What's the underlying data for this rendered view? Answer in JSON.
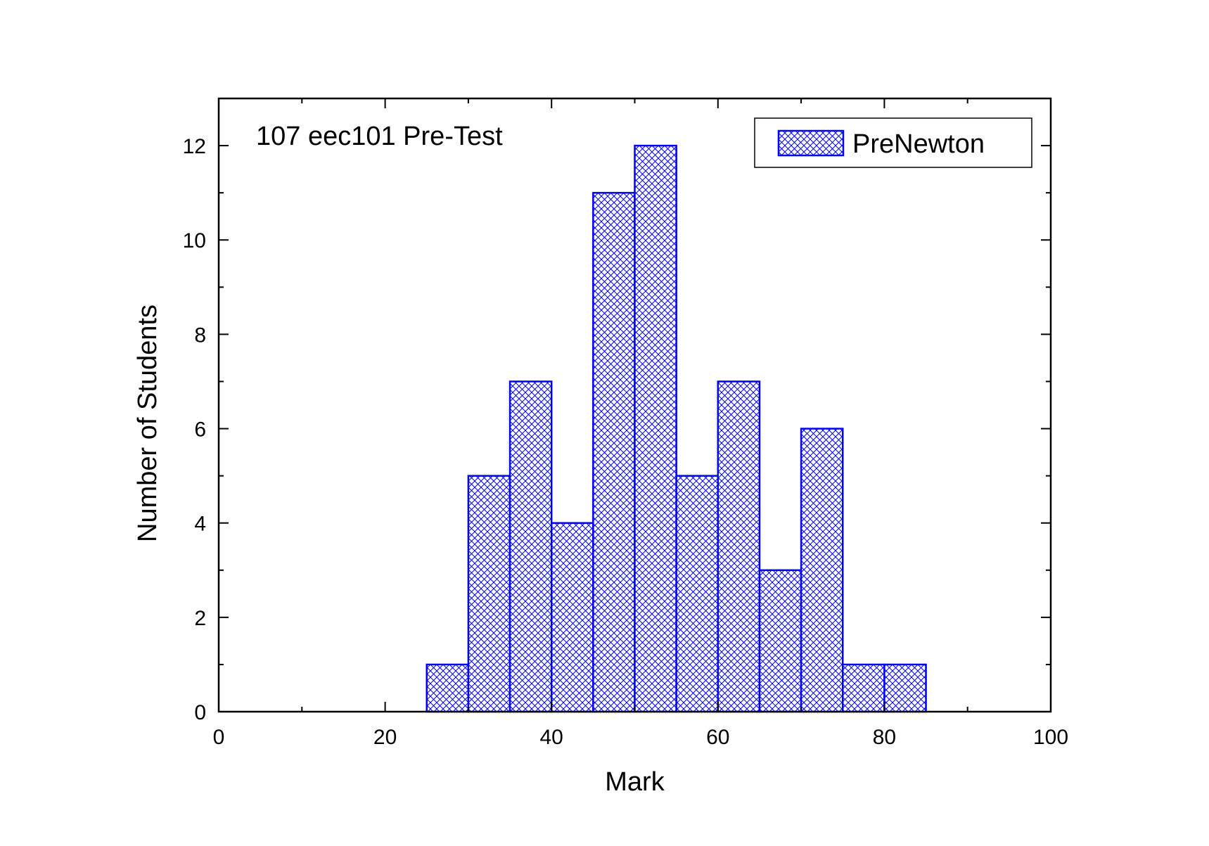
{
  "chart_data": {
    "type": "bar",
    "annotation": "107 eec101 Pre-Test",
    "xlabel": "Mark",
    "ylabel": "Number of Students",
    "xlim": [
      0,
      100
    ],
    "ylim": [
      0,
      13
    ],
    "x_ticks": [
      0,
      20,
      40,
      60,
      80,
      100
    ],
    "y_ticks": [
      0,
      2,
      4,
      6,
      8,
      10,
      12
    ],
    "bin_width": 5,
    "grid": false,
    "legend_position": "top-right",
    "series": [
      {
        "name": "PreNewton",
        "color": "#0000ff",
        "fill_pattern": "crosshatch",
        "bins": [
          25,
          30,
          35,
          40,
          45,
          50,
          55,
          60,
          65,
          70,
          75,
          80
        ],
        "values": [
          1,
          5,
          7,
          4,
          11,
          12,
          5,
          7,
          3,
          6,
          1,
          1
        ]
      }
    ]
  }
}
